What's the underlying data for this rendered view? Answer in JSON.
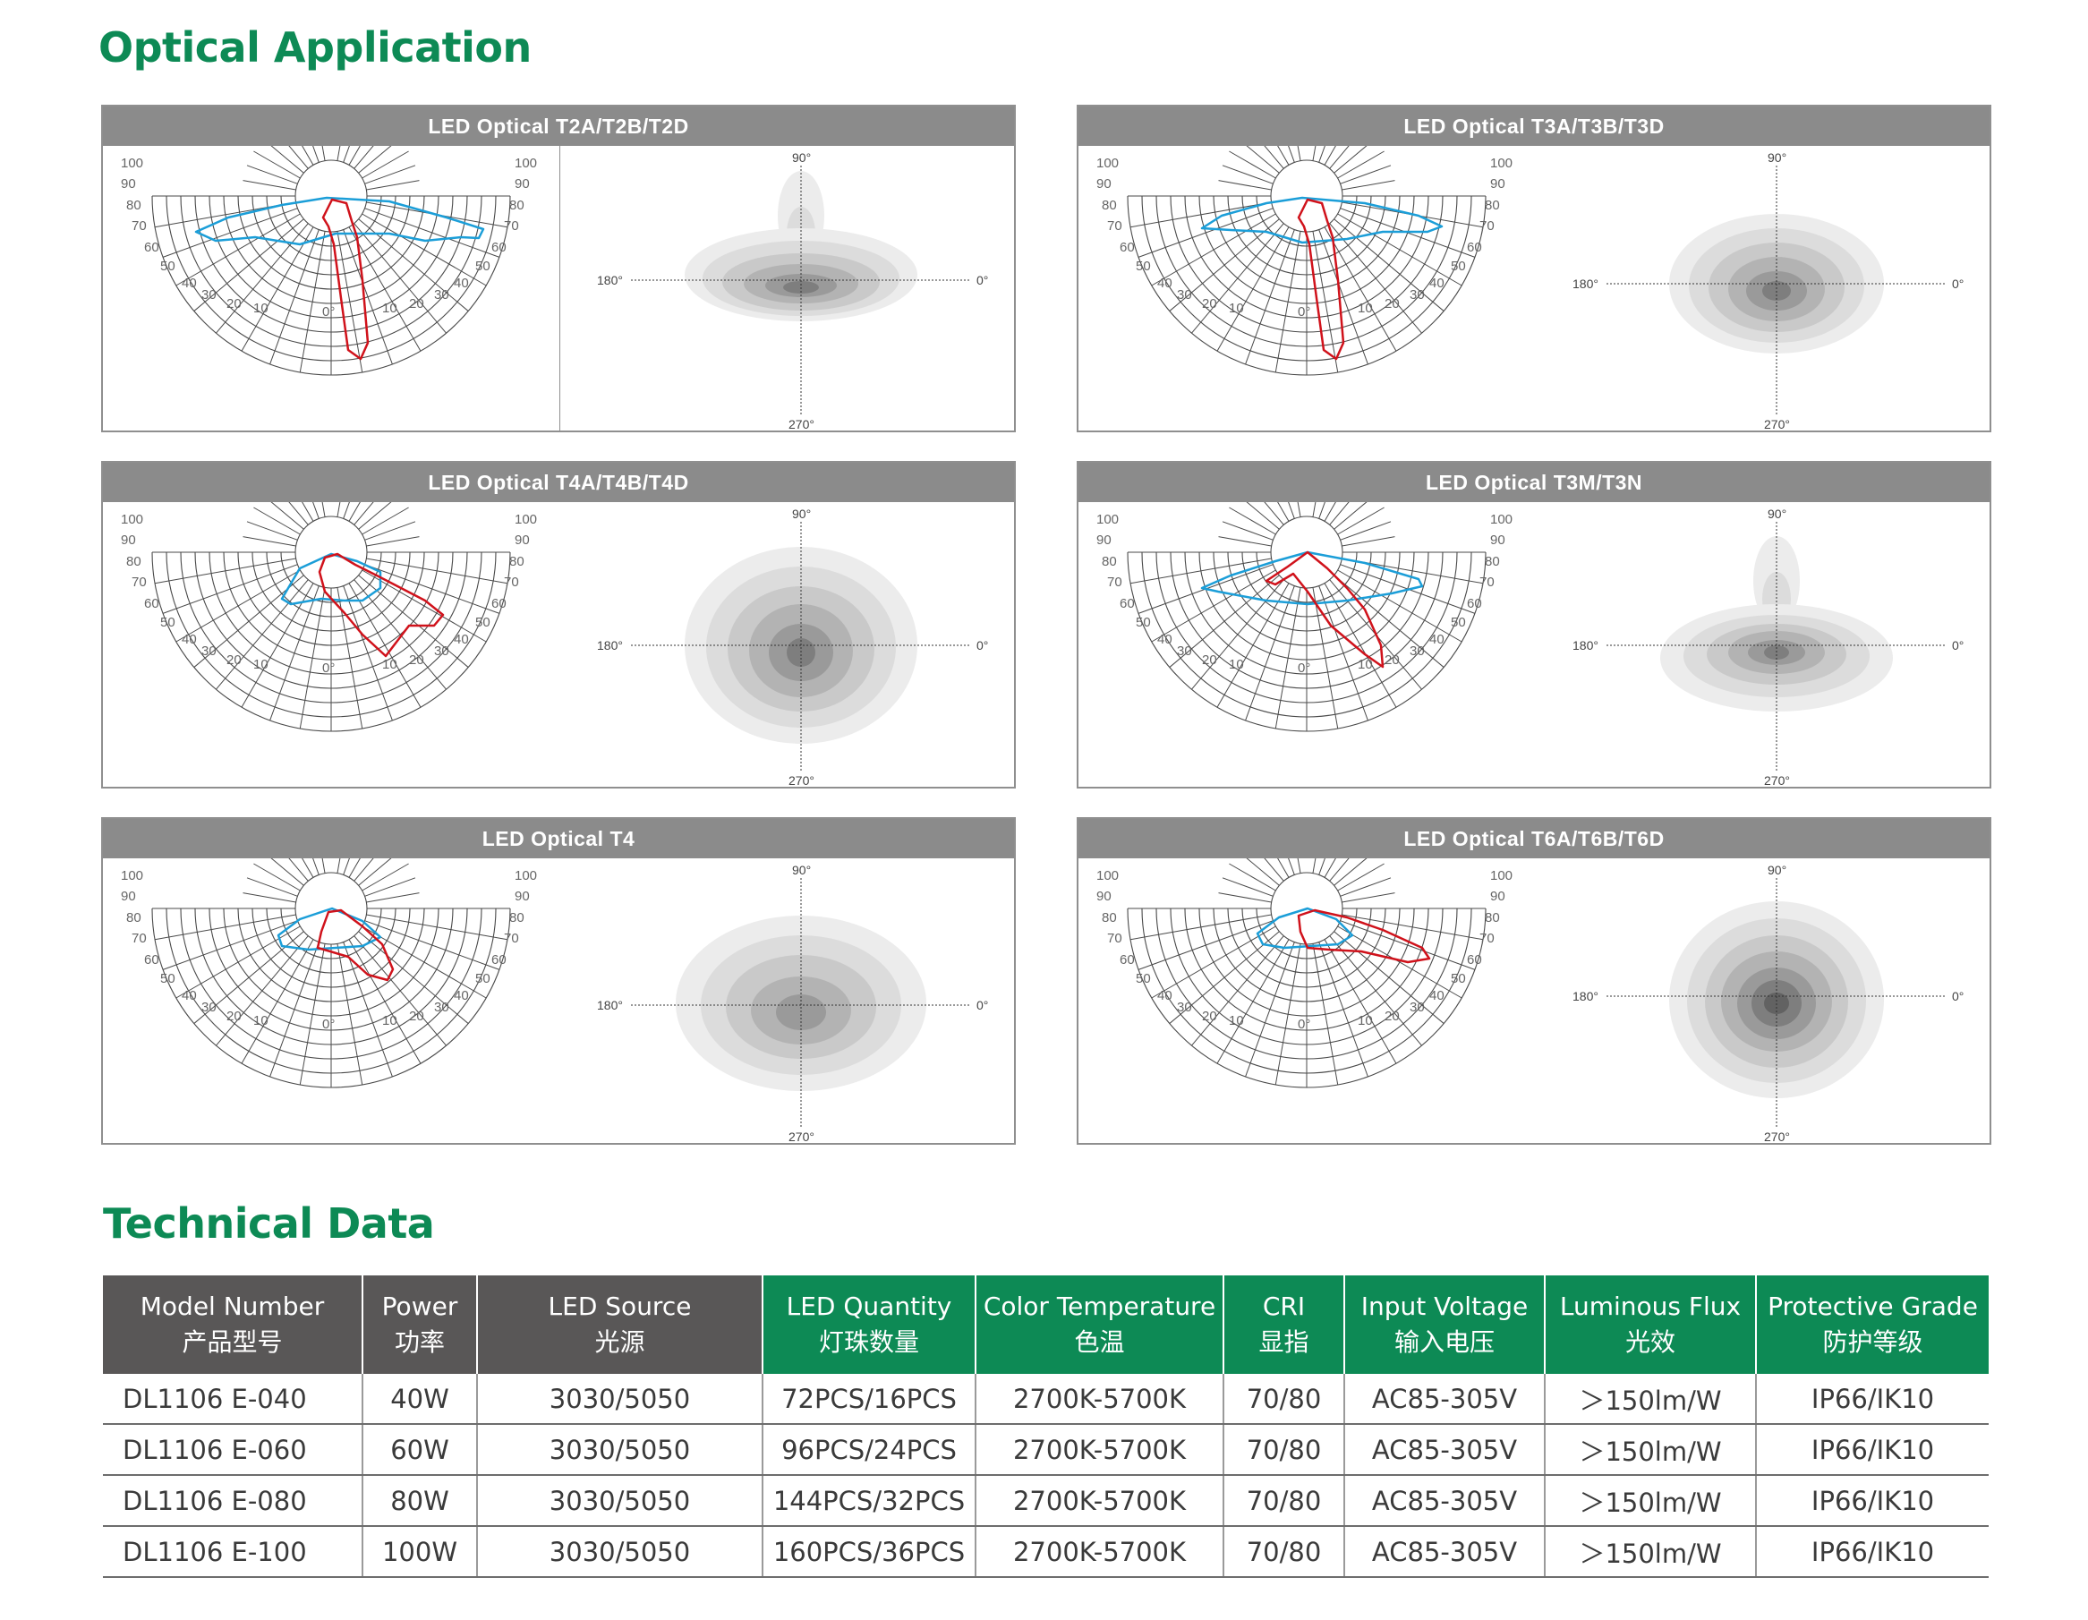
{
  "optical_title": "Optical Application",
  "technical_title": "Technical Data",
  "panels": [
    {
      "title": "LED Optical T2A/T2B/T2D"
    },
    {
      "title": "LED Optical T3A/T3B/T3D"
    },
    {
      "title": "LED Optical T4A/T4B/T4D"
    },
    {
      "title": "LED Optical T3M/T3N"
    },
    {
      "title": "LED Optical T4"
    },
    {
      "title": "LED Optical T6A/T6B/T6D"
    }
  ],
  "polar_labels": {
    "outer": [
      "100",
      "90",
      "80",
      "70",
      "60",
      "50",
      "40",
      "30",
      "20",
      "10"
    ],
    "zero": "0°"
  },
  "iso_labels": {
    "top": "90°",
    "bottom": "270°",
    "left": "180°",
    "right": "0°"
  },
  "colors": {
    "brand_green": "#0d8a55",
    "header_gray": "#595757",
    "panel_header": "#8b8b8b",
    "curve_red": "#d0121b",
    "curve_blue": "#1b9ed8"
  },
  "table": {
    "headers": [
      {
        "en": "Model Number",
        "cn": "产品型号",
        "style": "gray"
      },
      {
        "en": "Power",
        "cn": "功率",
        "style": "gray"
      },
      {
        "en": "LED Source",
        "cn": "光源",
        "style": "gray"
      },
      {
        "en": "LED Quantity",
        "cn": "灯珠数量",
        "style": "green"
      },
      {
        "en": "Color Temperature",
        "cn": "色温",
        "style": "green"
      },
      {
        "en": "CRI",
        "cn": "显指",
        "style": "green"
      },
      {
        "en": "Input Voltage",
        "cn": "输入电压",
        "style": "green"
      },
      {
        "en": "Luminous Flux",
        "cn": "光效",
        "style": "green"
      },
      {
        "en": "Protective Grade",
        "cn": "防护等级",
        "style": "green"
      }
    ],
    "rows": [
      [
        "DL1106 E-040",
        "40W",
        "3030/5050",
        "72PCS/16PCS",
        "2700K-5700K",
        "70/80",
        "AC85-305V",
        "＞150lm/W",
        "IP66/IK10"
      ],
      [
        "DL1106 E-060",
        "60W",
        "3030/5050",
        "96PCS/24PCS",
        "2700K-5700K",
        "70/80",
        "AC85-305V",
        "＞150lm/W",
        "IP66/IK10"
      ],
      [
        "DL1106 E-080",
        "80W",
        "3030/5050",
        "144PCS/32PCS",
        "2700K-5700K",
        "70/80",
        "AC85-305V",
        "＞150lm/W",
        "IP66/IK10"
      ],
      [
        "DL1106 E-100",
        "100W",
        "3030/5050",
        "160PCS/36PCS",
        "2700K-5700K",
        "70/80",
        "AC85-305V",
        "＞150lm/W",
        "IP66/IK10"
      ]
    ]
  }
}
